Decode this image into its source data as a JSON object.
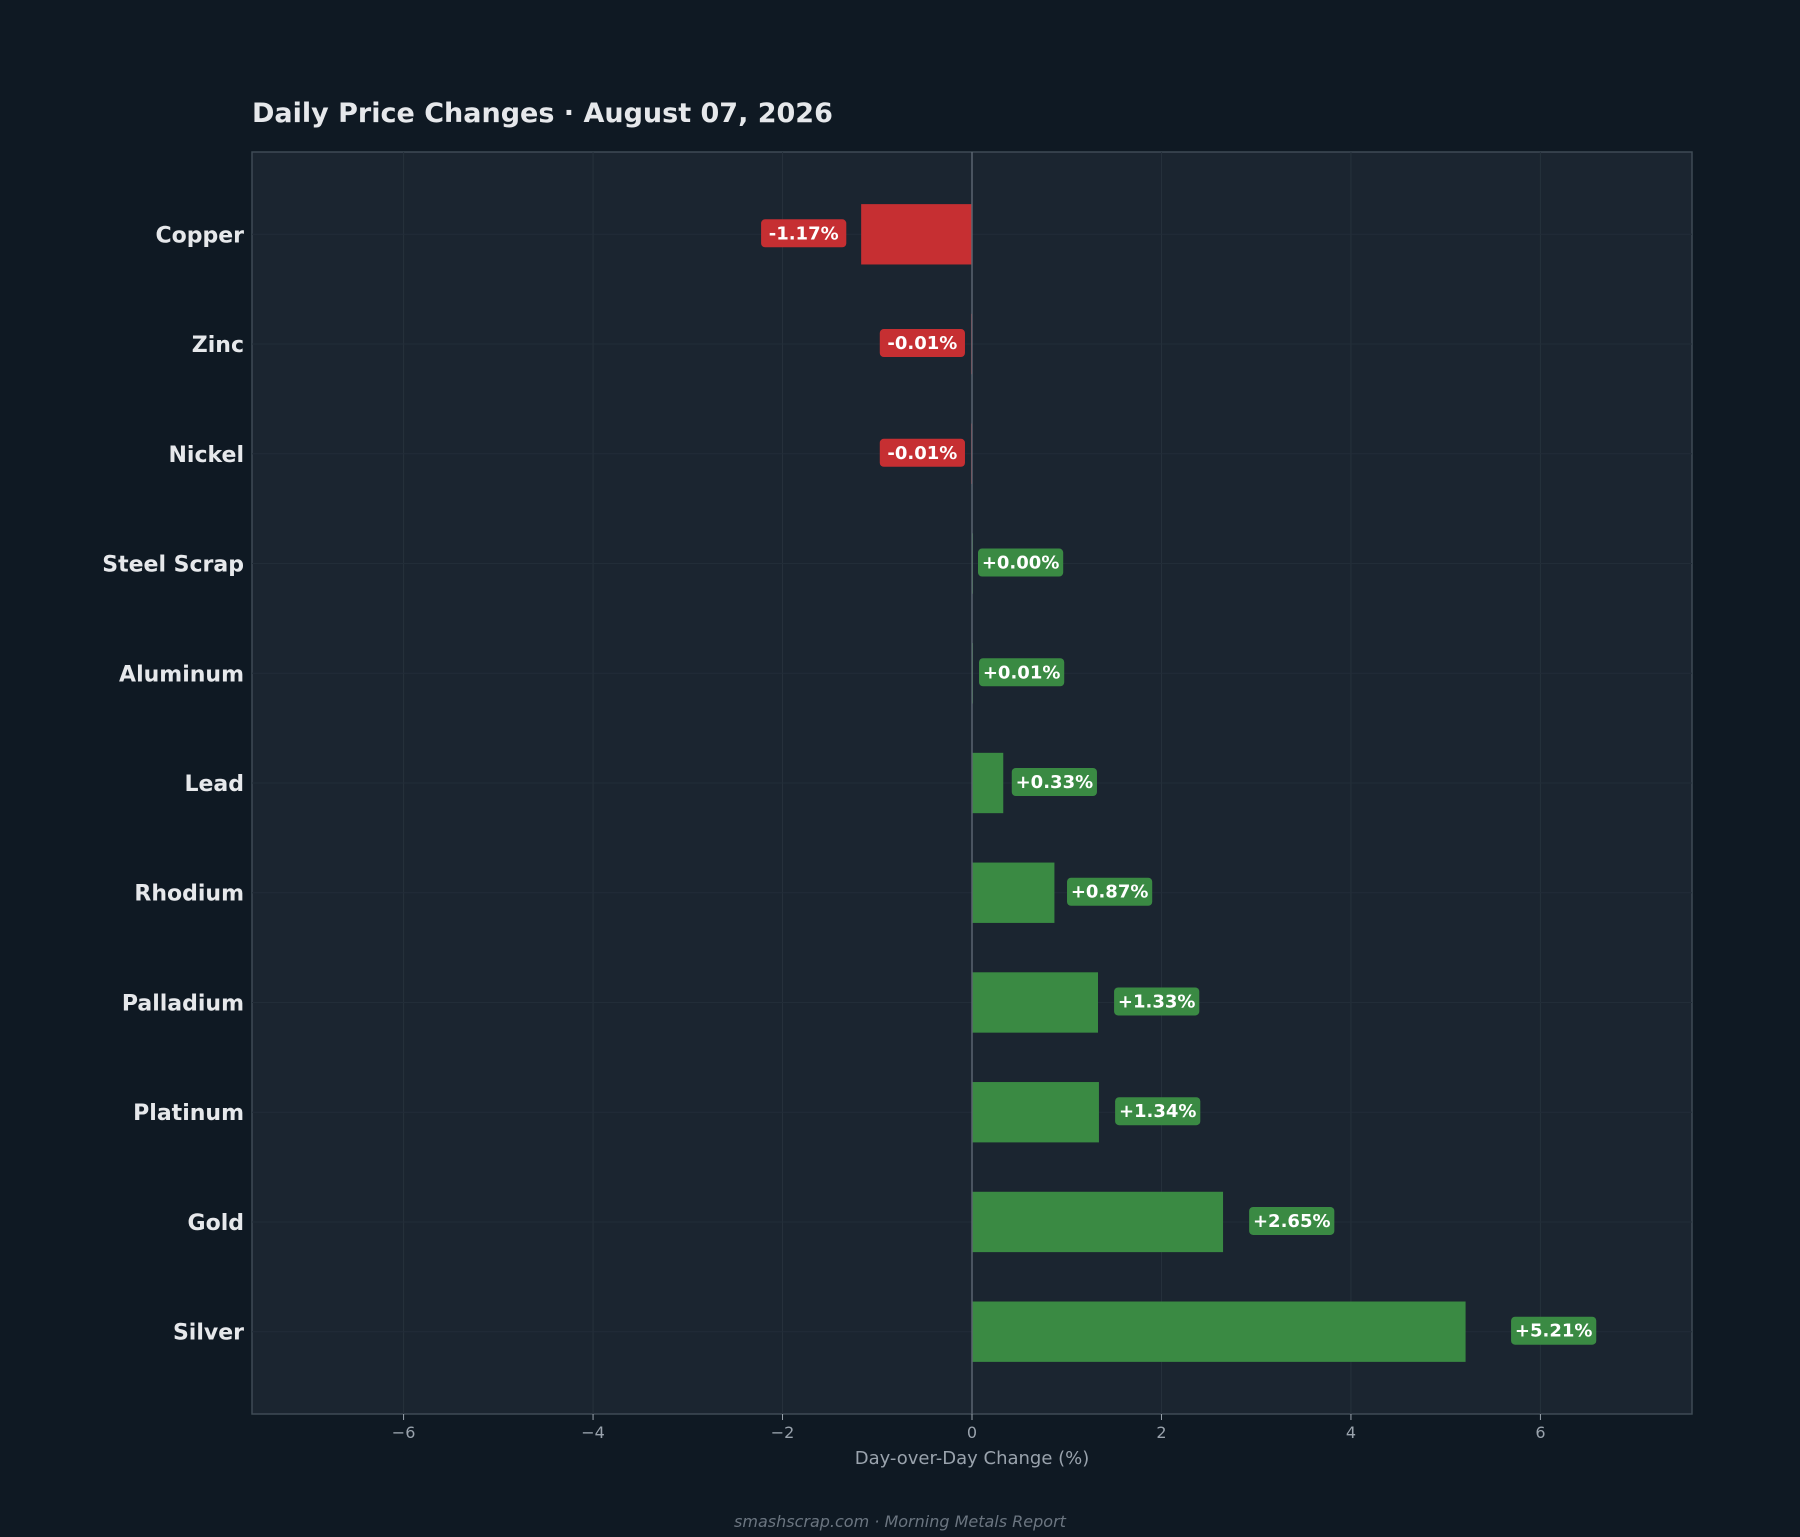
{
  "chart_data": {
    "type": "bar",
    "orientation": "horizontal",
    "title": "Daily Price Changes  ·  August 07, 2026",
    "xlabel": "Day-over-Day Change (%)",
    "ylabel": "",
    "categories": [
      "Copper",
      "Zinc",
      "Nickel",
      "Steel Scrap",
      "Aluminum",
      "Lead",
      "Rhodium",
      "Palladium",
      "Platinum",
      "Gold",
      "Silver"
    ],
    "values": [
      -1.17,
      -0.01,
      -0.01,
      0.0,
      0.01,
      0.33,
      0.87,
      1.33,
      1.34,
      2.65,
      5.21
    ],
    "value_labels": [
      "-1.17%",
      "-0.01%",
      "-0.01%",
      "+0.00%",
      "+0.01%",
      "+0.33%",
      "+0.87%",
      "+1.33%",
      "+1.34%",
      "+2.65%",
      "+5.21%"
    ],
    "xlim": [
      -7.6,
      7.6
    ],
    "xticks": [
      -6,
      -4,
      -2,
      0,
      2,
      4,
      6
    ],
    "xtick_labels": [
      "−6",
      "−4",
      "−2",
      "0",
      "2",
      "4",
      "6"
    ],
    "grid": true,
    "colors": {
      "negative": "#c62f32",
      "positive": "#3a8a43",
      "background": "#0f1923",
      "plot_background": "#1b2530"
    }
  },
  "footer": "smashscrap.com  ·  Morning Metals Report"
}
